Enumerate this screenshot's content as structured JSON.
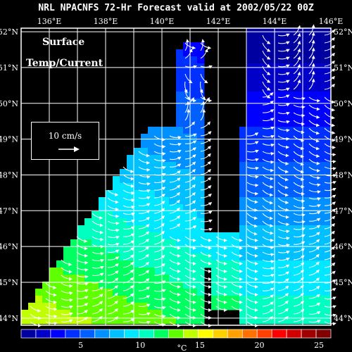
{
  "title": "NRL NPACNFS 72-Hr Forecast valid at 2002/05/22 00Z",
  "labels": {
    "surface": "Surface",
    "temp_current": "Temp/Current"
  },
  "legend": {
    "scale_text": "10 cm/s"
  },
  "axes": {
    "lon_ticks": [
      "136°E",
      "138°E",
      "140°E",
      "142°E",
      "144°E",
      "146°E"
    ],
    "lat_ticks": [
      "52°N",
      "51°N",
      "50°N",
      "49°N",
      "48°N",
      "47°N",
      "46°N",
      "45°N",
      "44°N"
    ],
    "lon_range": [
      135,
      146
    ],
    "lat_range": [
      43.8,
      52.1
    ]
  },
  "colorbar": {
    "unit": "°C",
    "tick_labels": [
      "5",
      "10",
      "15",
      "20",
      "25"
    ],
    "min": 0,
    "max": 26,
    "colors": [
      "#0000a0",
      "#0000c8",
      "#0000ff",
      "#0030ff",
      "#0060ff",
      "#0090ff",
      "#00c0ff",
      "#00e8ff",
      "#00ffc0",
      "#00ff60",
      "#60ff00",
      "#c0ff00",
      "#ffff00",
      "#ffd000",
      "#ffa000",
      "#ff7000",
      "#ff4000",
      "#ff0000",
      "#d00000",
      "#a00000",
      "#800000"
    ]
  },
  "colors": {
    "background": "#000000",
    "grid": "#ffffff",
    "arrow": "#ffffff"
  }
}
